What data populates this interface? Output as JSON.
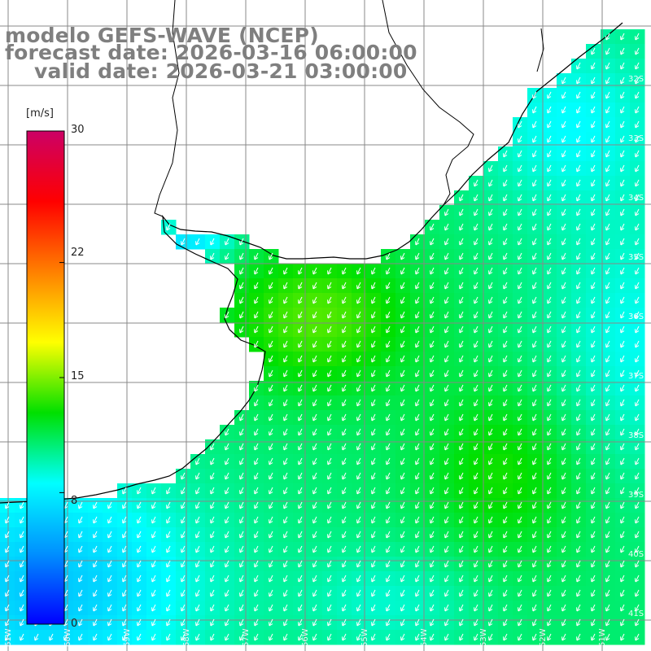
{
  "title": {
    "line1": "modelo GEFS-WAVE (NCEP)",
    "line2": "forecast date: 2026-03-16 06:00:00",
    "line3": "valid date: 2026-03-21 03:00:00"
  },
  "colorbar": {
    "unit": "[m/s]",
    "range": [
      0,
      30
    ],
    "ticks": [
      "30",
      "22",
      "15",
      "8",
      "0"
    ],
    "tick_values": [
      30,
      22,
      15,
      8,
      0
    ],
    "stops": [
      "#0000ff",
      "#0090ff",
      "#00ffff",
      "#00e000",
      "#ffff00",
      "#ff8000",
      "#ff0000",
      "#cc0066"
    ]
  },
  "map": {
    "lat_labels": [
      "32S",
      "33S",
      "34S",
      "35S",
      "36S",
      "37S",
      "38S",
      "39S",
      "40S",
      "41S"
    ],
    "lon_labels": [
      "61W",
      "60W",
      "59W",
      "58W",
      "57W",
      "56W",
      "55W",
      "54W",
      "53W",
      "52W",
      "51W"
    ],
    "land_color": "#ffffff",
    "grid_color": "#888888",
    "coast_color": "#000000",
    "arrow_color": "#ffffff",
    "wind_direction": "from northeast"
  }
}
